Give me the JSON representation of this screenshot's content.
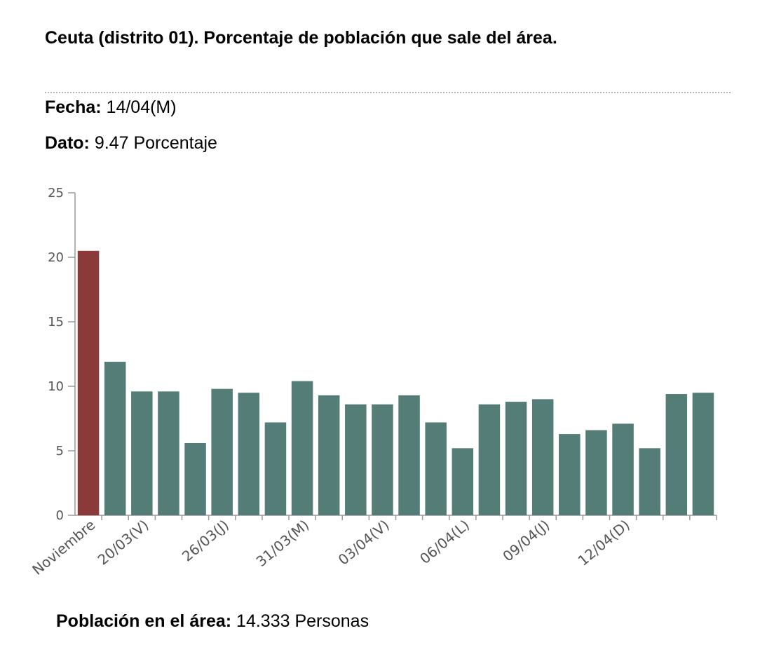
{
  "header": {
    "title": "Ceuta (distrito 01). Porcentaje de población que sale del área."
  },
  "selection": {
    "fecha_label": "Fecha:",
    "fecha_value": "14/04(M)",
    "dato_label": "Dato:",
    "dato_value": "9.47 Porcentaje"
  },
  "footer": {
    "poblacion_label": "Población en el área:",
    "poblacion_value": "14.333 Personas"
  },
  "colors": {
    "highlight": "#8b3a3a",
    "bar": "#537d76",
    "axis": "#9a9a9a"
  },
  "chart_data": {
    "type": "bar",
    "title": "",
    "xlabel": "",
    "ylabel": "",
    "ylim": [
      0,
      25
    ],
    "yticks": [
      0,
      5,
      10,
      15,
      20,
      25
    ],
    "grid": false,
    "categories": [
      "Noviembre",
      "",
      "20/03(V)",
      "",
      "",
      "26/03(J)",
      "",
      "",
      "31/03(M)",
      "",
      "",
      "03/04(V)",
      "",
      "",
      "06/04(L)",
      "",
      "",
      "09/04(J)",
      "",
      "",
      "12/04(D)",
      "",
      "",
      ""
    ],
    "values": [
      20.5,
      11.9,
      9.6,
      9.6,
      5.6,
      9.8,
      9.5,
      7.2,
      10.4,
      9.3,
      8.6,
      8.6,
      9.3,
      7.2,
      5.2,
      8.6,
      8.8,
      9.0,
      6.3,
      6.6,
      7.1,
      5.2,
      9.4,
      9.5
    ],
    "highlight_index": 0
  }
}
